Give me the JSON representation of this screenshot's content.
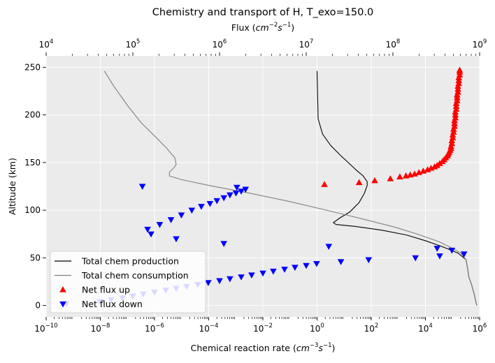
{
  "chart_data": {
    "type": "line",
    "title": "Chemistry and transport of H, T_exo=150.0",
    "xlabel": "Chemical reaction rate",
    "xlabel_units_base": "cm",
    "xlabel_units_exp1": "−3",
    "xlabel_units_mid": "s",
    "xlabel_units_exp2": "−1",
    "top_xlabel": "Flux",
    "top_xlabel_units_base": "cm",
    "top_xlabel_units_exp1": "−2",
    "top_xlabel_units_mid": "s",
    "top_xlabel_units_exp2": "−1",
    "ylabel": "Altitude (km)",
    "xscale": "log",
    "xlim": [
      1e-10,
      1000000.0
    ],
    "top_xscale": "log",
    "top_xlim": [
      10000.0,
      1000000000.0
    ],
    "ylim": [
      -12,
      262
    ],
    "grid": true,
    "legend_position": "lower-left",
    "x_ticks": [
      {
        "base": "10",
        "exp": "−10",
        "value": -10
      },
      {
        "base": "10",
        "exp": "−8",
        "value": -8
      },
      {
        "base": "10",
        "exp": "−6",
        "value": -6
      },
      {
        "base": "10",
        "exp": "−4",
        "value": -4
      },
      {
        "base": "10",
        "exp": "−2",
        "value": -2
      },
      {
        "base": "10",
        "exp": "0",
        "value": 0
      },
      {
        "base": "10",
        "exp": "2",
        "value": 2
      },
      {
        "base": "10",
        "exp": "4",
        "value": 4
      },
      {
        "base": "10",
        "exp": "6",
        "value": 6
      }
    ],
    "top_ticks": [
      {
        "base": "10",
        "exp": "4",
        "value": 4
      },
      {
        "base": "10",
        "exp": "5",
        "value": 5
      },
      {
        "base": "10",
        "exp": "6",
        "value": 6
      },
      {
        "base": "10",
        "exp": "7",
        "value": 7
      },
      {
        "base": "10",
        "exp": "8",
        "value": 8
      },
      {
        "base": "10",
        "exp": "9",
        "value": 9
      }
    ],
    "y_ticks": [
      "0",
      "50",
      "100",
      "150",
      "200",
      "250"
    ],
    "series": [
      {
        "name": "Total chem production",
        "kind": "line",
        "axis": "bottom",
        "color": "#000000",
        "points": [
          [
            0.0,
            246
          ],
          [
            0.02,
            220
          ],
          [
            0.04,
            196
          ],
          [
            0.2,
            180
          ],
          [
            0.5,
            168
          ],
          [
            0.85,
            158
          ],
          [
            1.15,
            150
          ],
          [
            1.45,
            142
          ],
          [
            1.7,
            136
          ],
          [
            1.85,
            130
          ],
          [
            1.85,
            126
          ],
          [
            1.75,
            118
          ],
          [
            1.55,
            108
          ],
          [
            1.2,
            98
          ],
          [
            0.85,
            92
          ],
          [
            0.6,
            87
          ],
          [
            0.7,
            85
          ],
          [
            1.4,
            83
          ],
          [
            2.4,
            79
          ],
          [
            3.3,
            74
          ],
          [
            4.0,
            68
          ],
          [
            4.6,
            62
          ],
          [
            5.2,
            55
          ],
          [
            5.5,
            48
          ],
          [
            5.55,
            40
          ],
          [
            5.6,
            30
          ],
          [
            5.7,
            22
          ],
          [
            5.8,
            12
          ],
          [
            5.85,
            5
          ],
          [
            5.9,
            0
          ]
        ]
      },
      {
        "name": "Total chem consumption",
        "kind": "line",
        "axis": "bottom",
        "color": "#808080",
        "points": [
          [
            -7.85,
            246
          ],
          [
            -7.5,
            230
          ],
          [
            -7.0,
            210
          ],
          [
            -6.5,
            192
          ],
          [
            -6.0,
            178
          ],
          [
            -5.55,
            165
          ],
          [
            -5.25,
            155
          ],
          [
            -5.2,
            148
          ],
          [
            -5.3,
            144
          ],
          [
            -5.45,
            140
          ],
          [
            -5.45,
            136
          ],
          [
            -5.0,
            132
          ],
          [
            -4.0,
            126
          ],
          [
            -2.5,
            118
          ],
          [
            -1.0,
            109
          ],
          [
            0.5,
            99
          ],
          [
            1.8,
            90
          ],
          [
            2.9,
            82
          ],
          [
            3.8,
            74
          ],
          [
            4.5,
            67
          ],
          [
            5.0,
            60
          ],
          [
            5.3,
            55
          ],
          [
            5.5,
            48
          ],
          [
            5.55,
            40
          ],
          [
            5.6,
            30
          ],
          [
            5.7,
            22
          ],
          [
            5.8,
            12
          ],
          [
            5.85,
            5
          ],
          [
            5.9,
            0
          ]
        ]
      },
      {
        "name": "Net flux up",
        "kind": "markers",
        "axis": "top",
        "marker": "triangle-up",
        "color": "#ff0000",
        "points": [
          [
            7.21,
            127
          ],
          [
            7.61,
            129
          ],
          [
            7.79,
            131
          ],
          [
            7.97,
            133
          ],
          [
            8.08,
            135
          ],
          [
            8.15,
            136
          ],
          [
            8.2,
            137
          ],
          [
            8.25,
            138
          ],
          [
            8.3,
            139.5
          ],
          [
            8.35,
            141
          ],
          [
            8.4,
            142.5
          ],
          [
            8.44,
            144
          ],
          [
            8.48,
            145.5
          ],
          [
            8.51,
            147
          ],
          [
            8.54,
            149
          ],
          [
            8.57,
            151
          ],
          [
            8.59,
            153
          ],
          [
            8.61,
            155
          ],
          [
            8.63,
            157
          ],
          [
            8.64,
            159
          ],
          [
            8.65,
            161
          ],
          [
            8.66,
            163
          ],
          [
            8.67,
            165
          ],
          [
            8.67,
            167
          ],
          [
            8.68,
            170
          ],
          [
            8.68,
            173
          ],
          [
            8.69,
            176
          ],
          [
            8.69,
            179
          ],
          [
            8.7,
            182
          ],
          [
            8.7,
            185
          ],
          [
            8.71,
            188
          ],
          [
            8.71,
            191
          ],
          [
            8.71,
            194
          ],
          [
            8.72,
            197
          ],
          [
            8.72,
            200
          ],
          [
            8.72,
            203
          ],
          [
            8.73,
            206
          ],
          [
            8.73,
            209
          ],
          [
            8.73,
            212
          ],
          [
            8.74,
            215
          ],
          [
            8.74,
            218
          ],
          [
            8.74,
            221
          ],
          [
            8.75,
            224
          ],
          [
            8.75,
            227
          ],
          [
            8.75,
            230
          ],
          [
            8.76,
            233
          ],
          [
            8.76,
            236
          ],
          [
            8.76,
            239
          ],
          [
            8.77,
            242
          ],
          [
            8.77,
            245
          ],
          [
            8.77,
            247
          ]
        ]
      },
      {
        "name": "Net flux down",
        "kind": "markers",
        "axis": "top",
        "marker": "triangle-down",
        "color": "#0000ff",
        "points": [
          [
            4.23,
            2
          ],
          [
            4.62,
            4
          ],
          [
            4.75,
            6
          ],
          [
            4.88,
            8
          ],
          [
            5.0,
            10
          ],
          [
            5.12,
            12
          ],
          [
            5.25,
            14
          ],
          [
            5.38,
            16
          ],
          [
            5.5,
            18
          ],
          [
            5.62,
            20
          ],
          [
            5.75,
            22
          ],
          [
            5.87,
            24
          ],
          [
            6.0,
            26
          ],
          [
            6.12,
            28
          ],
          [
            6.25,
            30
          ],
          [
            6.37,
            32
          ],
          [
            6.5,
            34
          ],
          [
            6.62,
            36
          ],
          [
            6.75,
            38
          ],
          [
            6.87,
            40
          ],
          [
            7.0,
            42
          ],
          [
            7.12,
            44
          ],
          [
            7.4,
            46
          ],
          [
            7.72,
            48
          ],
          [
            8.26,
            50
          ],
          [
            8.54,
            52
          ],
          [
            8.82,
            54
          ],
          [
            9.45,
            56
          ],
          [
            8.68,
            58
          ],
          [
            8.51,
            60
          ],
          [
            7.26,
            62
          ],
          [
            6.05,
            65
          ],
          [
            5.5,
            70
          ],
          [
            5.21,
            75
          ],
          [
            5.17,
            80
          ],
          [
            5.31,
            85
          ],
          [
            5.44,
            90
          ],
          [
            5.56,
            95
          ],
          [
            5.68,
            100
          ],
          [
            5.79,
            104
          ],
          [
            5.89,
            107
          ],
          [
            5.97,
            110
          ],
          [
            6.05,
            113
          ],
          [
            6.12,
            116
          ],
          [
            6.19,
            118
          ],
          [
            6.25,
            120
          ],
          [
            6.3,
            122
          ],
          [
            6.2,
            124
          ],
          [
            5.11,
            125
          ],
          [
            3.42,
            126
          ],
          [
            1.02,
            127
          ]
        ]
      }
    ]
  }
}
